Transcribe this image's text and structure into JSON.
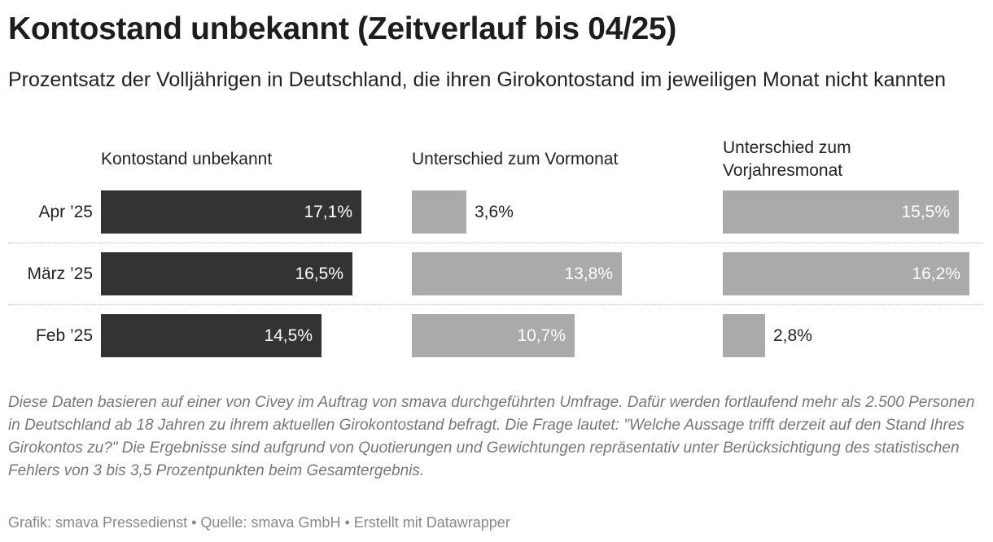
{
  "title": "Kontostand unbekannt (Zeitverlauf bis 04/25)",
  "subtitle": "Prozentsatz der Volljährigen in Deutschland, die ihren Girokontostand im jeweiligen Monat nicht kannten",
  "chart_data": {
    "type": "bar",
    "orientation": "horizontal",
    "categories": [
      "Apr ’25",
      "März ’25",
      "Feb ’25"
    ],
    "series": [
      {
        "name": "Kontostand unbekannt",
        "values": [
          17.1,
          16.5,
          14.5
        ],
        "labels": [
          "17,1%",
          "16,5%",
          "14,5%"
        ],
        "color": "#333333"
      },
      {
        "name": "Unterschied zum Vormonat",
        "values": [
          3.6,
          13.8,
          10.7
        ],
        "labels": [
          "3,6%",
          "13,8%",
          "10,7%"
        ],
        "color": "#aaaaaa"
      },
      {
        "name": "Unterschied zum Vorjahresmonat",
        "values": [
          15.5,
          16.2,
          2.8
        ],
        "labels": [
          "15,5%",
          "16,2%",
          "2,8%"
        ],
        "color": "#aaaaaa"
      }
    ]
  },
  "notes": "Diese Daten basieren auf einer von Civey im Auftrag von smava durchgeführten Umfrage. Dafür werden fortlaufend mehr als 2.500 Personen in Deutschland ab 18 Jahren zu ihrem aktuellen Girokontostand befragt. Die Frage lautet: \"Welche Aussage trifft derzeit auf den Stand Ihres Girokontos zu?\" Die Ergebnisse sind aufgrund von Quotierungen und Gewichtungen repräsentativ unter Berücksichtigung des statistischen Fehlers von 3 bis 3,5 Prozentpunkten beim Gesamtergebnis.",
  "footer": "Grafik: smava Pressedienst • Quelle: smava GmbH • Erstellt mit Datawrapper"
}
